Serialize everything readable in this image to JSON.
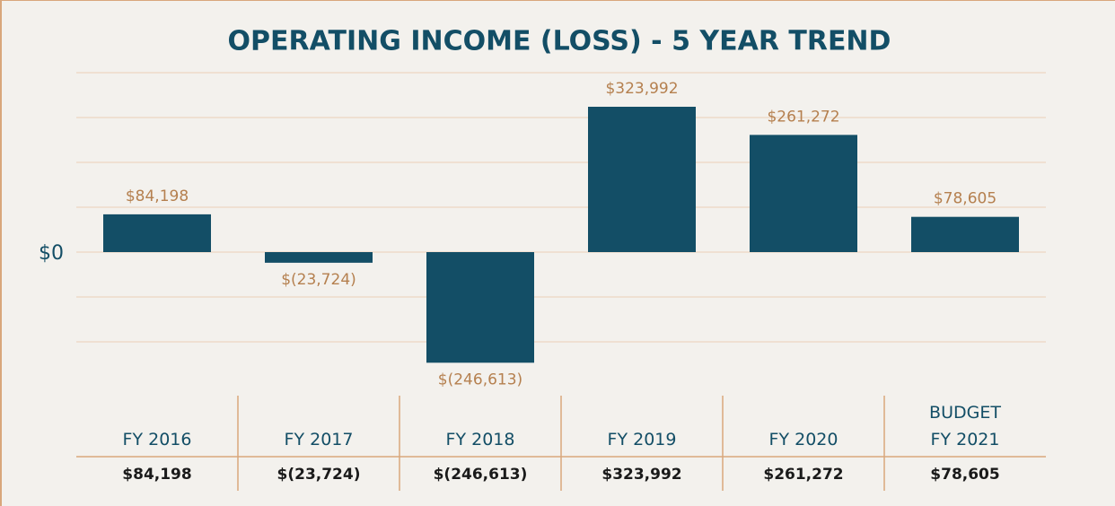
{
  "chart_data": {
    "type": "bar",
    "title": "OPERATING INCOME (LOSS) - 5 YEAR TREND",
    "categories": [
      "FY 2016",
      "FY 2017",
      "FY 2018",
      "FY 2019",
      "FY 2020",
      "BUDGET\nFY 2021"
    ],
    "values": [
      84198,
      -23724,
      -246613,
      323992,
      261272,
      78605
    ],
    "value_labels": [
      "$84,198",
      "$(23,724)",
      "$(246,613)",
      "$323,992",
      "$261,272",
      "$78,605"
    ],
    "color": "#134e66",
    "ylim": [
      -250000,
      400000
    ],
    "yticks": [
      {
        "value": -200000,
        "label": null
      },
      {
        "value": -100000,
        "label": null
      },
      {
        "value": 0,
        "label": "$0"
      },
      {
        "value": 100000,
        "label": null
      },
      {
        "value": 200000,
        "label": null
      },
      {
        "value": 300000,
        "label": null
      },
      {
        "value": 400000,
        "label": null
      }
    ],
    "grid": true
  }
}
